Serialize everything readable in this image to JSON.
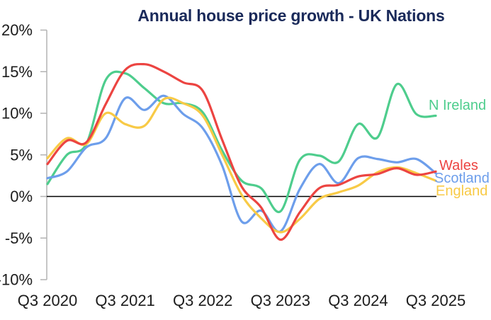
{
  "page_title": "Annual house price growth - UK Nations",
  "colors": {
    "title_text": "#1a2a5a",
    "axis_text": "#1c1c1c",
    "axis_line": "#b3b3b3",
    "zero_line": "#000000",
    "background": "#ffffff",
    "n_ireland": "#4ecd8d",
    "wales": "#ec4441",
    "scotland": "#6d9eeb",
    "england": "#f8ca46"
  },
  "chart_data": {
    "type": "line",
    "title": "Annual house price growth - UK Nations",
    "xlabel": "",
    "ylabel": "",
    "unit": "%",
    "ylim": [
      -10,
      20
    ],
    "grid": false,
    "zero_line": true,
    "legend_position": "end-of-line-labels-right",
    "y_tick_values": [
      20,
      15,
      10,
      5,
      0,
      -5,
      -10
    ],
    "y_tick_labels": [
      "20%",
      "15%",
      "10%",
      "5%",
      "0%",
      "-5%",
      "-10%"
    ],
    "x_tick_labels": [
      "Q3 2020",
      "Q3 2021",
      "Q3 2022",
      "Q3 2023",
      "Q3 2024",
      "Q3 2025"
    ],
    "x": [
      "Q3 2020",
      "Q4 2020",
      "Q1 2021",
      "Q2 2021",
      "Q3 2021",
      "Q4 2021",
      "Q1 2022",
      "Q2 2022",
      "Q3 2022",
      "Q4 2022",
      "Q1 2023",
      "Q2 2023",
      "Q3 2023",
      "Q4 2023",
      "Q1 2024",
      "Q2 2024",
      "Q3 2024",
      "Q4 2024",
      "Q1 2025",
      "Q2 2025",
      "Q3 2025"
    ],
    "series": [
      {
        "name": "N Ireland",
        "color": "#4ecd8d",
        "values": [
          1.5,
          5.0,
          6.3,
          14.0,
          14.8,
          13.0,
          11.2,
          11.2,
          10.1,
          5.5,
          1.9,
          1.0,
          -1.8,
          4.4,
          4.9,
          4.2,
          8.7,
          7.1,
          13.5,
          9.9,
          9.7
        ]
      },
      {
        "name": "Scotland",
        "color": "#6d9eeb",
        "values": [
          2.2,
          3.0,
          5.9,
          7.0,
          11.8,
          10.4,
          12.1,
          9.9,
          8.2,
          3.7,
          -3.0,
          -1.7,
          -4.2,
          0.9,
          3.9,
          1.6,
          4.6,
          4.5,
          4.1,
          4.5,
          2.8
        ]
      },
      {
        "name": "England",
        "color": "#f8ca46",
        "values": [
          4.6,
          7.0,
          6.3,
          10.0,
          8.7,
          8.5,
          11.7,
          11.2,
          9.7,
          5.0,
          0.2,
          -2.6,
          -4.3,
          -2.7,
          -0.3,
          0.5,
          1.3,
          2.9,
          3.5,
          2.8,
          1.9
        ]
      },
      {
        "name": "Wales",
        "color": "#ec4441",
        "values": [
          3.9,
          6.7,
          6.5,
          11.1,
          15.2,
          15.9,
          15.0,
          13.7,
          12.7,
          6.8,
          1.2,
          -1.3,
          -5.2,
          -1.9,
          1.0,
          1.4,
          2.4,
          2.7,
          3.4,
          2.6,
          3.0
        ]
      }
    ]
  }
}
